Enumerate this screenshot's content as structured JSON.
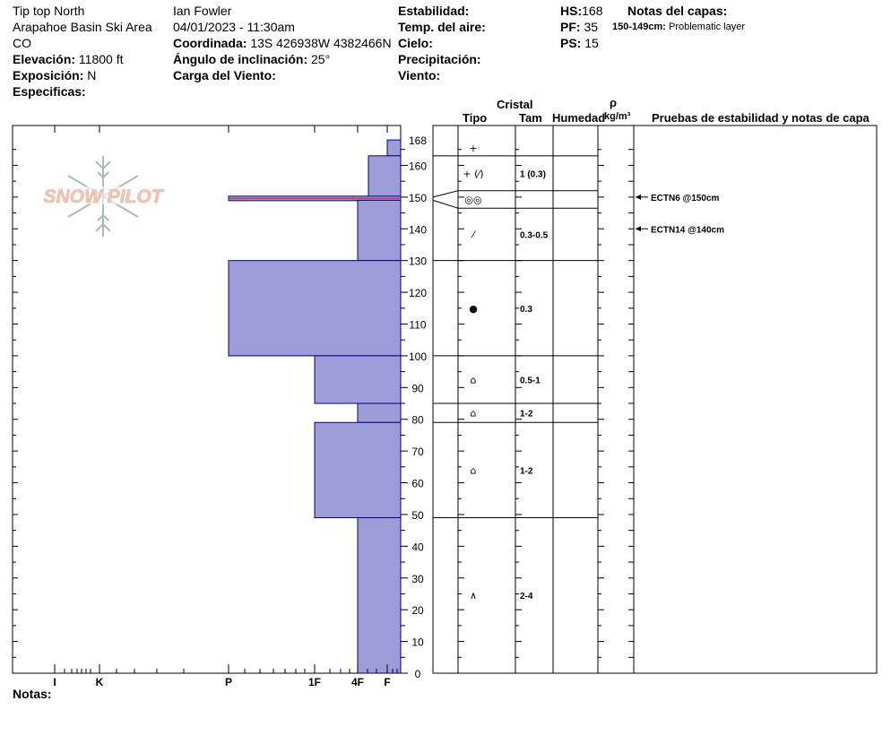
{
  "header": {
    "location": "Tip top North",
    "area": "Arapahoe Basin Ski Area",
    "state": "CO",
    "elevation_label": "Elevación:",
    "elevation_value": "11800 ft",
    "aspect_label": "Exposición:",
    "aspect_value": "N",
    "specifics_label": "Especificas:",
    "observer": "Ian Fowler",
    "datetime": "04/01/2023 - 11:30am",
    "coord_label": "Coordinada:",
    "coord_value": "13S 426938W 4382466N",
    "slope_label": "Ángulo de inclinación:",
    "slope_value": "25°",
    "wind_load_label": "Carga del Viento:",
    "stability_label": "Estabilidad:",
    "air_temp_label": "Temp. del aire:",
    "sky_label": "Cielo:",
    "precip_label": "Precipitación:",
    "wind_label": "Viento:",
    "hs_label": "HS:",
    "hs_value": "168",
    "pf_label": "PF:",
    "pf_value": "35",
    "ps_label": "PS:",
    "ps_value": "15",
    "layer_notes_label": "Notas del capas:",
    "layer_note_range": "150-149cm:",
    "layer_note_text": "Problematic layer"
  },
  "column_headers": {
    "crystal": "Cristal",
    "type": "Tipo",
    "size": "Tam",
    "moisture": "Humedad",
    "rho": "ρ",
    "density_unit": "kg/m³",
    "tests": "Pruebas de estabilidad y notas de capa"
  },
  "notes_label": "Notas:",
  "logo_text": "SNOW PILOT",
  "colors": {
    "hardness_fill": "#9d9bd8",
    "hardness_stroke": "#00008b",
    "crust_line": "#d0384a",
    "logo_fill": "#f0c8b8",
    "logo_flake": "#aeb8c0"
  },
  "chart_data": {
    "type": "snow-profile",
    "y_axis": {
      "label": "",
      "unit": "cm",
      "min": 0,
      "max": 168,
      "ticks": [
        "0",
        "10",
        "20",
        "30",
        "40",
        "50",
        "60",
        "70",
        "80",
        "90",
        "100",
        "110",
        "120",
        "130",
        "140",
        "150",
        "160",
        "168"
      ]
    },
    "hardness_axis": {
      "labels": [
        "I",
        "K",
        "P",
        "1F",
        "4F",
        "F"
      ]
    },
    "hardness_layers": [
      {
        "top": 168,
        "bottom": 163,
        "hardness": "F"
      },
      {
        "top": 163,
        "bottom": 150,
        "hardness": "F+"
      },
      {
        "top": 150,
        "bottom": 149,
        "hardness": "P",
        "crust": true
      },
      {
        "top": 149,
        "bottom": 130,
        "hardness": "4F"
      },
      {
        "top": 130,
        "bottom": 100,
        "hardness": "P"
      },
      {
        "top": 100,
        "bottom": 85,
        "hardness": "1F"
      },
      {
        "top": 85,
        "bottom": 79,
        "hardness": "4F"
      },
      {
        "top": 79,
        "bottom": 49,
        "hardness": "1F"
      },
      {
        "top": 49,
        "bottom": 0,
        "hardness": "4F"
      }
    ],
    "layer_boundaries": [
      163,
      152,
      146.5,
      130,
      100,
      85,
      79,
      49
    ],
    "layers": [
      {
        "top": 168,
        "bottom": 163,
        "type": "+",
        "size": ""
      },
      {
        "top": 163,
        "bottom": 152,
        "type": "+ (⁄)",
        "size": "1 (0.3)"
      },
      {
        "top": 152,
        "bottom": 146.5,
        "type": "◎◎",
        "size": ""
      },
      {
        "top": 146.5,
        "bottom": 130,
        "type": "⁄",
        "size": "0.3-0.5"
      },
      {
        "top": 130,
        "bottom": 100,
        "type": "●",
        "size": "0.3"
      },
      {
        "top": 100,
        "bottom": 85,
        "type": "⌂",
        "size": "0.5-1"
      },
      {
        "top": 85,
        "bottom": 79,
        "type": "⌂",
        "size": "1-2"
      },
      {
        "top": 79,
        "bottom": 49,
        "type": "⌂",
        "size": "1-2"
      },
      {
        "top": 49,
        "bottom": 0,
        "type": "∧",
        "size": "2-4"
      }
    ],
    "stability_tests": [
      {
        "depth": 150,
        "label": "ECTN6 @150cm"
      },
      {
        "depth": 140,
        "label": "ECTN14 @140cm"
      }
    ]
  }
}
